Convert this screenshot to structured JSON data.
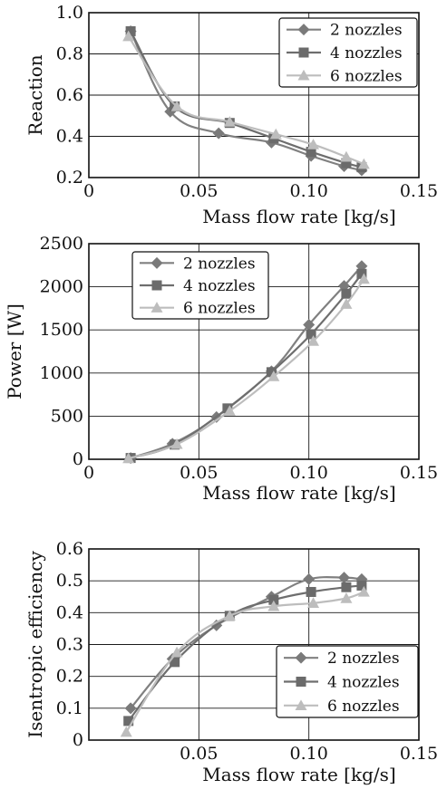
{
  "legend_labels": [
    "2 nozzles",
    "4 nozzles",
    "6 nozzles"
  ],
  "series_colors": [
    "#808080",
    "#6e6e6e",
    "#bdbdbd"
  ],
  "chart_data": [
    {
      "type": "line",
      "xlabel": "Mass flow rate  [kg/s]",
      "ylabel": "Reaction",
      "xlim": [
        0,
        0.15
      ],
      "ylim": [
        0.2,
        1.0
      ],
      "xticks": [
        "0",
        "0.05",
        "0.10",
        "0.15"
      ],
      "xtick_values": [
        0,
        0.05,
        0.1,
        0.15
      ],
      "yticks": [
        "0.2",
        "0.4",
        "0.6",
        "0.8",
        "1.0"
      ],
      "ytick_values": [
        0.2,
        0.4,
        0.6,
        0.8,
        1.0
      ],
      "grid": true,
      "legend_position": "top-right",
      "series": [
        {
          "name": "2 nozzles",
          "marker": "diamond",
          "x": [
            0.019,
            0.037,
            0.059,
            0.083,
            0.101,
            0.116,
            0.124
          ],
          "y": [
            0.91,
            0.52,
            0.415,
            0.37,
            0.305,
            0.255,
            0.235
          ]
        },
        {
          "name": "4 nozzles",
          "marker": "square",
          "x": [
            0.019,
            0.039,
            0.064,
            0.084,
            0.101,
            0.117,
            0.124
          ],
          "y": [
            0.91,
            0.545,
            0.465,
            0.39,
            0.325,
            0.27,
            0.25
          ]
        },
        {
          "name": "6 nozzles",
          "marker": "triangle",
          "x": [
            0.018,
            0.04,
            0.064,
            0.085,
            0.102,
            0.117,
            0.125
          ],
          "y": [
            0.885,
            0.545,
            0.47,
            0.41,
            0.36,
            0.3,
            0.265
          ]
        }
      ]
    },
    {
      "type": "line",
      "xlabel": "Mass flow rate  [kg/s]",
      "ylabel": "Power  [W]",
      "xlim": [
        0,
        0.15
      ],
      "ylim": [
        0,
        2500
      ],
      "xticks": [
        "0",
        "0.05",
        "0.10",
        "0.15"
      ],
      "xtick_values": [
        0,
        0.05,
        0.1,
        0.15
      ],
      "yticks": [
        "0",
        "500",
        "1000",
        "1500",
        "2000",
        "2500"
      ],
      "ytick_values": [
        0,
        500,
        1000,
        1500,
        2000,
        2500
      ],
      "grid": true,
      "legend_position": "top-left",
      "series": [
        {
          "name": "2 nozzles",
          "marker": "diamond",
          "x": [
            0.019,
            0.038,
            0.058,
            0.083,
            0.1,
            0.116,
            0.124
          ],
          "y": [
            15,
            180,
            490,
            1020,
            1560,
            2010,
            2240
          ]
        },
        {
          "name": "4 nozzles",
          "marker": "square",
          "x": [
            0.019,
            0.039,
            0.063,
            0.083,
            0.101,
            0.117,
            0.124
          ],
          "y": [
            15,
            170,
            590,
            1010,
            1450,
            1920,
            2150
          ]
        },
        {
          "name": "6 nozzles",
          "marker": "triangle",
          "x": [
            0.018,
            0.04,
            0.064,
            0.084,
            0.102,
            0.117,
            0.125
          ],
          "y": [
            10,
            175,
            560,
            960,
            1370,
            1800,
            2090
          ]
        }
      ]
    },
    {
      "type": "line",
      "xlabel": "Mass flow rate  [kg/s]",
      "ylabel": "Isentropic efficiency",
      "xlim": [
        0,
        0.15
      ],
      "ylim": [
        0,
        0.6
      ],
      "xticks": [
        "0.05",
        "0.10",
        "0.15"
      ],
      "xtick_values": [
        0.05,
        0.1,
        0.15
      ],
      "yticks": [
        "0",
        "0.1",
        "0.2",
        "0.3",
        "0.4",
        "0.5",
        "0.6"
      ],
      "ytick_values": [
        0,
        0.1,
        0.2,
        0.3,
        0.4,
        0.5,
        0.6
      ],
      "grid": true,
      "legend_position": "bottom-right",
      "series": [
        {
          "name": "2 nozzles",
          "marker": "diamond",
          "x": [
            0.019,
            0.038,
            0.058,
            0.083,
            0.1,
            0.116,
            0.124
          ],
          "y": [
            0.1,
            0.255,
            0.36,
            0.45,
            0.505,
            0.51,
            0.505
          ]
        },
        {
          "name": "4 nozzles",
          "marker": "square",
          "x": [
            0.018,
            0.039,
            0.064,
            0.084,
            0.101,
            0.117,
            0.124
          ],
          "y": [
            0.06,
            0.245,
            0.39,
            0.44,
            0.465,
            0.48,
            0.485
          ]
        },
        {
          "name": "6 nozzles",
          "marker": "triangle",
          "x": [
            0.017,
            0.04,
            0.064,
            0.084,
            0.102,
            0.117,
            0.125
          ],
          "y": [
            0.025,
            0.275,
            0.39,
            0.42,
            0.43,
            0.445,
            0.465
          ]
        }
      ]
    }
  ]
}
